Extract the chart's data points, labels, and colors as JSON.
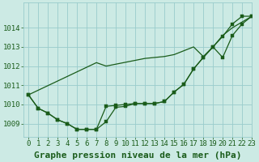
{
  "title": "Graphe pression niveau de la mer (hPa)",
  "background_color": "#cceae4",
  "plot_bg_color": "#cceae4",
  "grid_color": "#99cccc",
  "line_color": "#1a5c1a",
  "xlim": [
    -0.5,
    23
  ],
  "ylim": [
    1008.3,
    1015.3
  ],
  "yticks": [
    1009,
    1010,
    1011,
    1012,
    1013,
    1014
  ],
  "yticklabels": [
    "1009",
    "1010",
    "1011",
    "1012",
    "1013",
    "1014"
  ],
  "xtick_labels": [
    "0",
    "1",
    "2",
    "3",
    "4",
    "5",
    "6",
    "7",
    "8",
    "9",
    "10",
    "11",
    "12",
    "13",
    "14",
    "15",
    "16",
    "17",
    "18",
    "19",
    "20",
    "21",
    "22",
    "23"
  ],
  "series_straight": [
    1010.5,
    1010.74,
    1010.98,
    1011.22,
    1011.46,
    1011.7,
    1011.94,
    1012.18,
    1012.0,
    1012.1,
    1012.2,
    1012.3,
    1012.4,
    1012.45,
    1012.5,
    1012.6,
    1012.8,
    1013.0,
    1012.5,
    1013.0,
    1013.6,
    1014.0,
    1014.3,
    1014.6
  ],
  "series_main": [
    1010.5,
    1009.8,
    1009.55,
    1009.2,
    1009.0,
    1008.7,
    1008.7,
    1008.7,
    1009.1,
    1009.85,
    1009.9,
    1010.05,
    1010.05,
    1010.05,
    1010.15,
    1010.65,
    1011.05,
    1011.85,
    1012.45,
    1013.0,
    1013.55,
    1014.2,
    1014.6,
    1014.6
  ],
  "series_mid": [
    1010.5,
    1009.8,
    1009.55,
    1009.2,
    1009.0,
    1008.7,
    1008.7,
    1008.7,
    1009.9,
    1009.95,
    1010.0,
    1010.05,
    1010.05,
    1010.05,
    1010.15,
    1010.65,
    1011.05,
    1011.85,
    1012.45,
    1013.0,
    1012.45,
    1013.6,
    1014.2,
    1014.6
  ],
  "title_fontsize": 8,
  "tick_fontsize": 6.5
}
